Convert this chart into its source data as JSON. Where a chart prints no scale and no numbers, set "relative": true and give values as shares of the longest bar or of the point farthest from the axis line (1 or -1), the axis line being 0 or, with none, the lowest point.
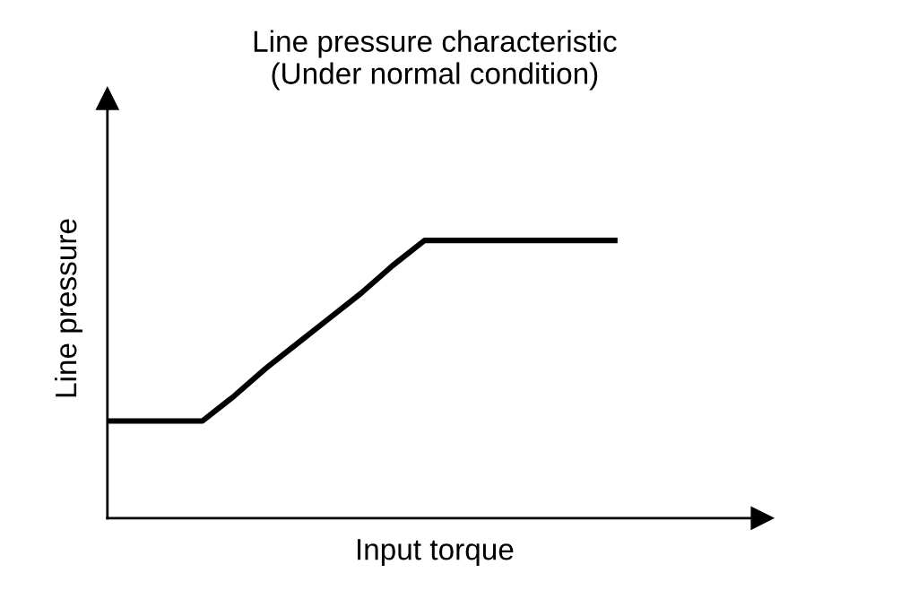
{
  "chart_data": {
    "type": "line",
    "title": "Line pressure characteristic\n(Under normal condition)",
    "xlabel": "Input torque",
    "ylabel": "Line pressure",
    "relative": true,
    "categories": [
      null,
      null,
      null,
      null,
      null,
      null,
      null,
      null,
      null,
      null,
      null,
      null,
      null,
      null,
      null,
      null,
      null
    ],
    "series": [
      {
        "color": "#000000",
        "values": [
          0.35,
          0.35,
          0.35,
          0.35,
          0.44,
          0.54,
          0.63,
          0.72,
          0.81,
          0.91,
          1,
          1,
          1,
          1,
          1,
          1,
          1
        ]
      }
    ],
    "legend": false,
    "marker": "none",
    "line_style": "solid"
  }
}
